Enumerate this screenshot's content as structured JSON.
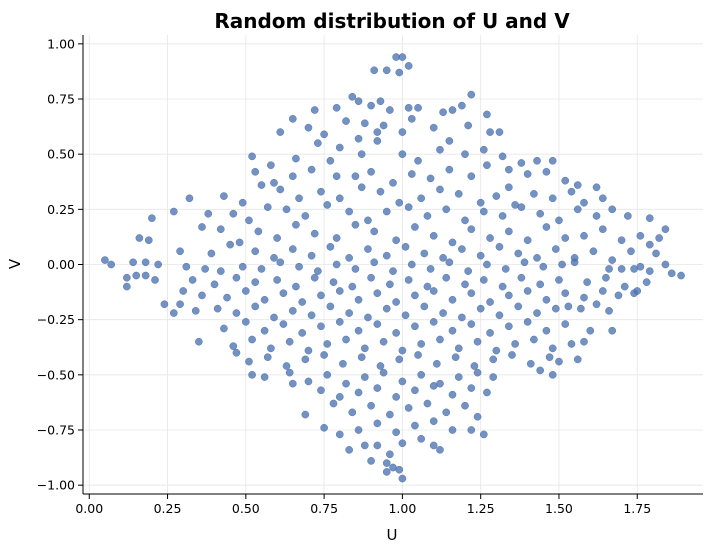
{
  "chart_data": {
    "type": "scatter",
    "title": "Random distribution of U and V",
    "xlabel": "U",
    "ylabel": "V",
    "xlim": [
      -0.02,
      1.96
    ],
    "ylim": [
      -1.04,
      1.04
    ],
    "grid": true,
    "x_ticks": [
      0.0,
      0.25,
      0.5,
      0.75,
      1.0,
      1.25,
      1.5,
      1.75
    ],
    "x_tick_labels": [
      "0.00",
      "0.25",
      "0.50",
      "0.75",
      "1.00",
      "1.25",
      "1.50",
      "1.75"
    ],
    "y_ticks": [
      1.0,
      0.75,
      0.5,
      0.25,
      0.0,
      -0.25,
      -0.5,
      -0.75,
      -1.0
    ],
    "y_tick_labels": [
      "1.00",
      "0.75",
      "0.50",
      "0.25",
      "0.00",
      "−0.25",
      "−0.50",
      "−0.75",
      "−1.00"
    ],
    "marker_color": "#4c72b0",
    "points": [
      [
        0.98,
        0.94
      ],
      [
        1.0,
        0.94
      ],
      [
        1.02,
        0.9
      ],
      [
        0.91,
        0.88
      ],
      [
        0.95,
        0.88
      ],
      [
        0.99,
        0.87
      ],
      [
        1.22,
        0.77
      ],
      [
        0.84,
        0.76
      ],
      [
        0.86,
        0.74
      ],
      [
        0.93,
        0.74
      ],
      [
        1.02,
        0.71
      ],
      [
        1.05,
        0.71
      ],
      [
        1.13,
        0.69
      ],
      [
        1.16,
        0.7
      ],
      [
        1.19,
        0.72
      ],
      [
        1.27,
        0.68
      ],
      [
        0.72,
        0.7
      ],
      [
        0.79,
        0.71
      ],
      [
        0.9,
        0.72
      ],
      [
        0.96,
        0.7
      ],
      [
        0.65,
        0.66
      ],
      [
        0.7,
        0.62
      ],
      [
        0.82,
        0.65
      ],
      [
        0.88,
        0.64
      ],
      [
        0.94,
        0.63
      ],
      [
        1.03,
        0.66
      ],
      [
        1.1,
        0.62
      ],
      [
        1.21,
        0.63
      ],
      [
        1.28,
        0.6
      ],
      [
        1.31,
        0.6
      ],
      [
        0.61,
        0.6
      ],
      [
        0.75,
        0.59
      ],
      [
        0.86,
        0.57
      ],
      [
        0.92,
        0.6
      ],
      [
        1.0,
        0.6
      ],
      [
        1.15,
        0.56
      ],
      [
        0.52,
        0.49
      ],
      [
        0.58,
        0.45
      ],
      [
        0.66,
        0.48
      ],
      [
        0.73,
        0.55
      ],
      [
        0.8,
        0.53
      ],
      [
        0.87,
        0.5
      ],
      [
        0.92,
        0.56
      ],
      [
        1.0,
        0.5
      ],
      [
        1.05,
        0.47
      ],
      [
        1.12,
        0.52
      ],
      [
        1.2,
        0.5
      ],
      [
        1.26,
        0.52
      ],
      [
        1.32,
        0.49
      ],
      [
        1.38,
        0.46
      ],
      [
        1.43,
        0.47
      ],
      [
        1.48,
        0.47
      ],
      [
        0.77,
        0.47
      ],
      [
        0.53,
        0.42
      ],
      [
        0.59,
        0.37
      ],
      [
        0.65,
        0.4
      ],
      [
        0.71,
        0.43
      ],
      [
        0.79,
        0.4
      ],
      [
        0.85,
        0.4
      ],
      [
        0.9,
        0.42
      ],
      [
        0.97,
        0.37
      ],
      [
        1.03,
        0.41
      ],
      [
        1.09,
        0.39
      ],
      [
        1.15,
        0.43
      ],
      [
        1.22,
        0.4
      ],
      [
        1.27,
        0.45
      ],
      [
        1.34,
        0.43
      ],
      [
        1.4,
        0.41
      ],
      [
        1.46,
        0.42
      ],
      [
        1.52,
        0.38
      ],
      [
        1.56,
        0.36
      ],
      [
        1.34,
        0.35
      ],
      [
        0.43,
        0.31
      ],
      [
        0.49,
        0.28
      ],
      [
        0.55,
        0.36
      ],
      [
        0.61,
        0.34
      ],
      [
        0.67,
        0.3
      ],
      [
        0.74,
        0.33
      ],
      [
        0.8,
        0.3
      ],
      [
        0.87,
        0.35
      ],
      [
        0.93,
        0.33
      ],
      [
        0.99,
        0.28
      ],
      [
        1.06,
        0.3
      ],
      [
        1.12,
        0.34
      ],
      [
        1.18,
        0.32
      ],
      [
        1.25,
        0.28
      ],
      [
        1.3,
        0.31
      ],
      [
        1.36,
        0.27
      ],
      [
        1.42,
        0.32
      ],
      [
        1.48,
        0.3
      ],
      [
        1.54,
        0.33
      ],
      [
        1.58,
        0.28
      ],
      [
        1.62,
        0.35
      ],
      [
        1.64,
        0.3
      ],
      [
        0.32,
        0.3
      ],
      [
        0.38,
        0.23
      ],
      [
        0.46,
        0.23
      ],
      [
        0.51,
        0.2
      ],
      [
        0.57,
        0.26
      ],
      [
        0.63,
        0.25
      ],
      [
        0.69,
        0.22
      ],
      [
        0.76,
        0.27
      ],
      [
        0.83,
        0.24
      ],
      [
        0.89,
        0.2
      ],
      [
        0.95,
        0.24
      ],
      [
        1.02,
        0.26
      ],
      [
        1.08,
        0.22
      ],
      [
        1.14,
        0.25
      ],
      [
        1.2,
        0.2
      ],
      [
        1.26,
        0.24
      ],
      [
        1.32,
        0.22
      ],
      [
        1.38,
        0.26
      ],
      [
        1.44,
        0.23
      ],
      [
        1.5,
        0.2
      ],
      [
        1.56,
        0.25
      ],
      [
        1.62,
        0.22
      ],
      [
        1.67,
        0.25
      ],
      [
        1.72,
        0.22
      ],
      [
        1.79,
        0.21
      ],
      [
        0.2,
        0.21
      ],
      [
        0.27,
        0.24
      ],
      [
        0.36,
        0.17
      ],
      [
        0.42,
        0.16
      ],
      [
        0.48,
        0.1
      ],
      [
        0.54,
        0.15
      ],
      [
        0.6,
        0.12
      ],
      [
        0.66,
        0.18
      ],
      [
        0.72,
        0.14
      ],
      [
        0.79,
        0.12
      ],
      [
        0.85,
        0.18
      ],
      [
        0.91,
        0.15
      ],
      [
        0.98,
        0.11
      ],
      [
        1.04,
        0.17
      ],
      [
        1.1,
        0.13
      ],
      [
        1.16,
        0.1
      ],
      [
        1.22,
        0.16
      ],
      [
        1.28,
        0.12
      ],
      [
        1.34,
        0.15
      ],
      [
        1.4,
        0.11
      ],
      [
        1.46,
        0.17
      ],
      [
        1.52,
        0.12
      ],
      [
        1.58,
        0.13
      ],
      [
        1.64,
        0.16
      ],
      [
        1.7,
        0.11
      ],
      [
        1.76,
        0.13
      ],
      [
        1.82,
        0.12
      ],
      [
        1.84,
        0.16
      ],
      [
        0.16,
        0.12
      ],
      [
        0.19,
        0.11
      ],
      [
        0.29,
        0.06
      ],
      [
        0.39,
        0.05
      ],
      [
        0.45,
        0.09
      ],
      [
        0.53,
        0.06
      ],
      [
        0.59,
        0.03
      ],
      [
        0.65,
        0.07
      ],
      [
        0.71,
        0.04
      ],
      [
        0.77,
        0.08
      ],
      [
        0.83,
        0.03
      ],
      [
        0.89,
        0.07
      ],
      [
        0.95,
        0.04
      ],
      [
        1.01,
        0.08
      ],
      [
        1.07,
        0.05
      ],
      [
        1.13,
        0.03
      ],
      [
        1.19,
        0.07
      ],
      [
        1.25,
        0.04
      ],
      [
        1.31,
        0.08
      ],
      [
        1.37,
        0.05
      ],
      [
        1.43,
        0.03
      ],
      [
        1.49,
        0.07
      ],
      [
        1.55,
        0.03
      ],
      [
        1.61,
        0.06
      ],
      [
        1.67,
        0.02
      ],
      [
        1.73,
        0.06
      ],
      [
        1.79,
        0.09
      ],
      [
        1.81,
        0.05
      ],
      [
        0.05,
        0.02
      ],
      [
        0.07,
        0.0
      ],
      [
        0.14,
        0.01
      ],
      [
        0.18,
        0.01
      ],
      [
        0.22,
        0.0
      ],
      [
        0.31,
        -0.01
      ],
      [
        0.37,
        -0.02
      ],
      [
        0.42,
        -0.03
      ],
      [
        0.49,
        -0.01
      ],
      [
        0.55,
        -0.02
      ],
      [
        0.61,
        0.01
      ],
      [
        0.67,
        -0.01
      ],
      [
        0.73,
        -0.03
      ],
      [
        0.79,
        0.0
      ],
      [
        0.85,
        -0.02
      ],
      [
        0.91,
        0.01
      ],
      [
        0.97,
        -0.03
      ],
      [
        1.03,
        0.0
      ],
      [
        1.09,
        -0.02
      ],
      [
        1.15,
        0.01
      ],
      [
        1.21,
        -0.03
      ],
      [
        1.27,
        0.0
      ],
      [
        1.33,
        -0.02
      ],
      [
        1.39,
        0.01
      ],
      [
        1.45,
        -0.01
      ],
      [
        1.51,
        0.0
      ],
      [
        1.55,
        0.01
      ],
      [
        1.66,
        -0.02
      ],
      [
        1.7,
        -0.02
      ],
      [
        1.74,
        -0.02
      ],
      [
        1.76,
        -0.01
      ],
      [
        1.79,
        -0.03
      ],
      [
        1.84,
        0.0
      ],
      [
        1.86,
        -0.04
      ],
      [
        1.89,
        -0.05
      ],
      [
        0.12,
        -0.06
      ],
      [
        0.15,
        -0.05
      ],
      [
        0.18,
        -0.05
      ],
      [
        0.21,
        -0.07
      ],
      [
        0.33,
        -0.07
      ],
      [
        0.4,
        -0.09
      ],
      [
        0.47,
        -0.06
      ],
      [
        0.53,
        -0.08
      ],
      [
        0.6,
        -0.07
      ],
      [
        0.66,
        -0.1
      ],
      [
        0.72,
        -0.06
      ],
      [
        0.78,
        -0.08
      ],
      [
        0.84,
        -0.1
      ],
      [
        0.9,
        -0.06
      ],
      [
        0.96,
        -0.09
      ],
      [
        1.02,
        -0.07
      ],
      [
        1.08,
        -0.1
      ],
      [
        1.14,
        -0.06
      ],
      [
        1.2,
        -0.09
      ],
      [
        1.26,
        -0.07
      ],
      [
        1.32,
        -0.1
      ],
      [
        1.38,
        -0.06
      ],
      [
        1.44,
        -0.09
      ],
      [
        1.5,
        -0.07
      ],
      [
        1.59,
        -0.08
      ],
      [
        1.65,
        -0.06
      ],
      [
        1.71,
        -0.1
      ],
      [
        1.75,
        -0.12
      ],
      [
        1.78,
        -0.08
      ],
      [
        0.12,
        -0.1
      ],
      [
        0.3,
        -0.12
      ],
      [
        0.36,
        -0.14
      ],
      [
        0.44,
        -0.15
      ],
      [
        0.5,
        -0.12
      ],
      [
        0.56,
        -0.16
      ],
      [
        0.62,
        -0.13
      ],
      [
        0.68,
        -0.17
      ],
      [
        0.74,
        -0.14
      ],
      [
        0.8,
        -0.12
      ],
      [
        0.86,
        -0.16
      ],
      [
        0.92,
        -0.13
      ],
      [
        0.98,
        -0.17
      ],
      [
        1.04,
        -0.14
      ],
      [
        1.1,
        -0.12
      ],
      [
        1.16,
        -0.16
      ],
      [
        1.22,
        -0.13
      ],
      [
        1.28,
        -0.17
      ],
      [
        1.34,
        -0.14
      ],
      [
        1.4,
        -0.12
      ],
      [
        1.46,
        -0.16
      ],
      [
        1.52,
        -0.13
      ],
      [
        1.58,
        -0.15
      ],
      [
        1.64,
        -0.12
      ],
      [
        1.69,
        -0.14
      ],
      [
        1.74,
        -0.13
      ],
      [
        0.24,
        -0.18
      ],
      [
        0.29,
        -0.18
      ],
      [
        0.27,
        -0.22
      ],
      [
        0.34,
        -0.21
      ],
      [
        0.41,
        -0.2
      ],
      [
        0.47,
        -0.22
      ],
      [
        0.53,
        -0.19
      ],
      [
        0.59,
        -0.24
      ],
      [
        0.65,
        -0.21
      ],
      [
        0.71,
        -0.23
      ],
      [
        0.77,
        -0.19
      ],
      [
        0.83,
        -0.22
      ],
      [
        0.89,
        -0.24
      ],
      [
        0.95,
        -0.2
      ],
      [
        1.01,
        -0.23
      ],
      [
        1.07,
        -0.19
      ],
      [
        1.13,
        -0.22
      ],
      [
        1.19,
        -0.24
      ],
      [
        1.25,
        -0.2
      ],
      [
        1.31,
        -0.23
      ],
      [
        1.37,
        -0.19
      ],
      [
        1.43,
        -0.22
      ],
      [
        1.49,
        -0.2
      ],
      [
        1.53,
        -0.19
      ],
      [
        1.57,
        -0.2
      ],
      [
        1.62,
        -0.18
      ],
      [
        1.66,
        -0.21
      ],
      [
        0.43,
        -0.29
      ],
      [
        0.5,
        -0.26
      ],
      [
        0.56,
        -0.3
      ],
      [
        0.62,
        -0.27
      ],
      [
        0.68,
        -0.31
      ],
      [
        0.74,
        -0.28
      ],
      [
        0.8,
        -0.26
      ],
      [
        0.86,
        -0.3
      ],
      [
        0.92,
        -0.27
      ],
      [
        0.98,
        -0.31
      ],
      [
        1.04,
        -0.28
      ],
      [
        1.1,
        -0.26
      ],
      [
        1.16,
        -0.3
      ],
      [
        1.22,
        -0.27
      ],
      [
        1.28,
        -0.31
      ],
      [
        1.34,
        -0.28
      ],
      [
        1.4,
        -0.26
      ],
      [
        1.46,
        -0.3
      ],
      [
        1.52,
        -0.27
      ],
      [
        1.6,
        -0.3
      ],
      [
        1.67,
        -0.3
      ],
      [
        0.35,
        -0.35
      ],
      [
        0.46,
        -0.37
      ],
      [
        0.52,
        -0.34
      ],
      [
        0.58,
        -0.38
      ],
      [
        0.64,
        -0.35
      ],
      [
        0.7,
        -0.39
      ],
      [
        0.76,
        -0.36
      ],
      [
        0.82,
        -0.34
      ],
      [
        0.88,
        -0.38
      ],
      [
        0.94,
        -0.35
      ],
      [
        1.0,
        -0.39
      ],
      [
        1.06,
        -0.36
      ],
      [
        1.12,
        -0.34
      ],
      [
        1.18,
        -0.38
      ],
      [
        1.24,
        -0.35
      ],
      [
        1.3,
        -0.39
      ],
      [
        1.36,
        -0.36
      ],
      [
        1.42,
        -0.34
      ],
      [
        1.48,
        -0.38
      ],
      [
        1.54,
        -0.36
      ],
      [
        1.58,
        -0.35
      ],
      [
        0.47,
        -0.4
      ],
      [
        0.51,
        -0.44
      ],
      [
        0.57,
        -0.42
      ],
      [
        0.63,
        -0.46
      ],
      [
        0.69,
        -0.43
      ],
      [
        0.75,
        -0.41
      ],
      [
        0.81,
        -0.45
      ],
      [
        0.87,
        -0.42
      ],
      [
        0.93,
        -0.46
      ],
      [
        0.99,
        -0.43
      ],
      [
        1.05,
        -0.41
      ],
      [
        1.11,
        -0.45
      ],
      [
        1.17,
        -0.42
      ],
      [
        1.23,
        -0.46
      ],
      [
        1.29,
        -0.43
      ],
      [
        1.35,
        -0.41
      ],
      [
        1.41,
        -0.45
      ],
      [
        1.47,
        -0.42
      ],
      [
        1.5,
        -0.44
      ],
      [
        1.56,
        -0.43
      ],
      [
        0.52,
        -0.5
      ],
      [
        0.56,
        -0.51
      ],
      [
        0.64,
        -0.49
      ],
      [
        0.7,
        -0.53
      ],
      [
        0.76,
        -0.5
      ],
      [
        0.82,
        -0.54
      ],
      [
        0.88,
        -0.51
      ],
      [
        0.94,
        -0.49
      ],
      [
        1.0,
        -0.53
      ],
      [
        1.06,
        -0.5
      ],
      [
        1.12,
        -0.54
      ],
      [
        1.18,
        -0.51
      ],
      [
        1.24,
        -0.49
      ],
      [
        1.29,
        -0.51
      ],
      [
        1.44,
        -0.48
      ],
      [
        1.48,
        -0.5
      ],
      [
        0.65,
        -0.54
      ],
      [
        0.74,
        -0.57
      ],
      [
        0.8,
        -0.6
      ],
      [
        0.86,
        -0.58
      ],
      [
        0.92,
        -0.56
      ],
      [
        0.98,
        -0.6
      ],
      [
        1.04,
        -0.57
      ],
      [
        1.1,
        -0.55
      ],
      [
        1.16,
        -0.59
      ],
      [
        1.22,
        -0.56
      ],
      [
        1.27,
        -0.58
      ],
      [
        0.69,
        -0.68
      ],
      [
        0.78,
        -0.63
      ],
      [
        0.84,
        -0.67
      ],
      [
        0.9,
        -0.64
      ],
      [
        0.96,
        -0.68
      ],
      [
        1.02,
        -0.65
      ],
      [
        1.08,
        -0.63
      ],
      [
        1.14,
        -0.67
      ],
      [
        1.2,
        -0.64
      ],
      [
        1.24,
        -0.69
      ],
      [
        0.75,
        -0.74
      ],
      [
        0.8,
        -0.77
      ],
      [
        0.86,
        -0.75
      ],
      [
        0.92,
        -0.72
      ],
      [
        0.98,
        -0.76
      ],
      [
        1.04,
        -0.73
      ],
      [
        1.1,
        -0.71
      ],
      [
        1.16,
        -0.75
      ],
      [
        1.22,
        -0.75
      ],
      [
        1.26,
        -0.77
      ],
      [
        0.88,
        -0.82
      ],
      [
        0.92,
        -0.82
      ],
      [
        0.96,
        -0.86
      ],
      [
        1.0,
        -0.81
      ],
      [
        1.06,
        -0.79
      ],
      [
        1.1,
        -0.82
      ],
      [
        1.12,
        -0.84
      ],
      [
        0.83,
        -0.84
      ],
      [
        0.9,
        -0.89
      ],
      [
        0.95,
        -0.9
      ],
      [
        0.97,
        -0.92
      ],
      [
        0.99,
        -0.93
      ],
      [
        1.0,
        -0.97
      ],
      [
        0.95,
        -0.94
      ]
    ]
  }
}
